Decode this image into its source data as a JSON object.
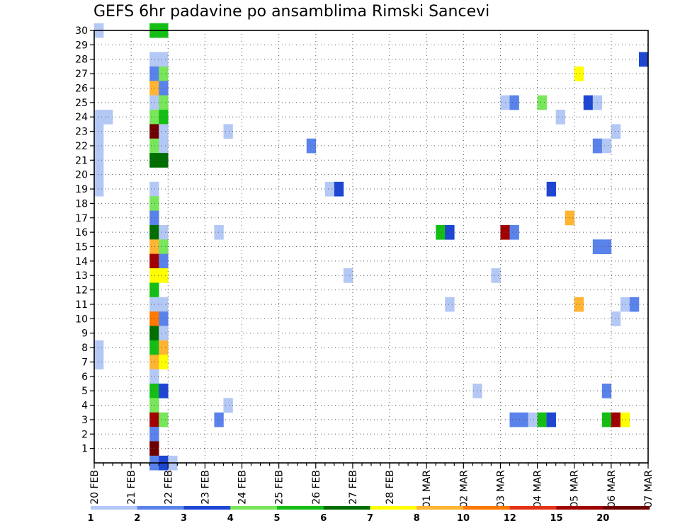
{
  "chart_data": {
    "type": "heatmap",
    "title": "GEFS 6hr padavine po ansamblima Rimski Sancevi",
    "xlabel": "",
    "ylabel": "",
    "x_tick_labels": [
      "20 FEB",
      "21 FEB",
      "22 FEB",
      "23 FEB",
      "24 FEB",
      "25 FEB",
      "26 FEB",
      "27 FEB",
      "28 FEB",
      "01 MAR",
      "02 MAR",
      "03 MAR",
      "04 MAR",
      "05 MAR",
      "06 MAR",
      "07 MAR"
    ],
    "x_range_days": [
      0,
      15
    ],
    "steps_per_day": 4,
    "y_tick_labels": [
      "1",
      "2",
      "3",
      "4",
      "5",
      "6",
      "7",
      "8",
      "9",
      "10",
      "11",
      "12",
      "13",
      "14",
      "15",
      "16",
      "17",
      "18",
      "19",
      "20",
      "21",
      "22",
      "23",
      "24",
      "25",
      "26",
      "27",
      "28",
      "29",
      "30"
    ],
    "y_range": [
      0,
      30
    ],
    "grid": true,
    "legend": {
      "placement": "bottom",
      "labels": [
        "1",
        "2",
        "3",
        "4",
        "5",
        "6",
        "7",
        "8",
        "10",
        "12",
        "15",
        "20"
      ],
      "colors": [
        "#b4c8f5",
        "#5a82eb",
        "#1e46d2",
        "#78e65a",
        "#14be14",
        "#006e00",
        "#ffff00",
        "#ffb432",
        "#ff7800",
        "#e13214",
        "#a00000",
        "#6e0000"
      ]
    },
    "cells": [
      {
        "step": 0,
        "member": 30,
        "value": 1
      },
      {
        "step": 0,
        "member": 24,
        "value": 1
      },
      {
        "step": 1,
        "member": 24,
        "value": 1
      },
      {
        "step": 0,
        "member": 23,
        "value": 1
      },
      {
        "step": 0,
        "member": 22,
        "value": 1
      },
      {
        "step": 0,
        "member": 21,
        "value": 1
      },
      {
        "step": 0,
        "member": 20,
        "value": 1
      },
      {
        "step": 0,
        "member": 19,
        "value": 1
      },
      {
        "step": 0,
        "member": 8,
        "value": 1
      },
      {
        "step": 0,
        "member": 7,
        "value": 1
      },
      {
        "step": 6,
        "member": 30,
        "value": 5
      },
      {
        "step": 7,
        "member": 30,
        "value": 5
      },
      {
        "step": 6,
        "member": 28,
        "value": 1
      },
      {
        "step": 7,
        "member": 28,
        "value": 1
      },
      {
        "step": 6,
        "member": 27,
        "value": 2
      },
      {
        "step": 7,
        "member": 27,
        "value": 4
      },
      {
        "step": 6,
        "member": 26,
        "value": 8
      },
      {
        "step": 7,
        "member": 26,
        "value": 2
      },
      {
        "step": 6,
        "member": 25,
        "value": 1
      },
      {
        "step": 7,
        "member": 25,
        "value": 4
      },
      {
        "step": 6,
        "member": 24,
        "value": 4
      },
      {
        "step": 7,
        "member": 24,
        "value": 5
      },
      {
        "step": 6,
        "member": 23,
        "value": 20
      },
      {
        "step": 7,
        "member": 23,
        "value": 1
      },
      {
        "step": 6,
        "member": 22,
        "value": 4
      },
      {
        "step": 7,
        "member": 22,
        "value": 1
      },
      {
        "step": 6,
        "member": 21,
        "value": 6
      },
      {
        "step": 7,
        "member": 21,
        "value": 6
      },
      {
        "step": 6,
        "member": 19,
        "value": 1
      },
      {
        "step": 6,
        "member": 18,
        "value": 4
      },
      {
        "step": 6,
        "member": 17,
        "value": 2
      },
      {
        "step": 6,
        "member": 16,
        "value": 6
      },
      {
        "step": 7,
        "member": 16,
        "value": 1
      },
      {
        "step": 6,
        "member": 15,
        "value": 8
      },
      {
        "step": 7,
        "member": 15,
        "value": 4
      },
      {
        "step": 6,
        "member": 14,
        "value": 15
      },
      {
        "step": 7,
        "member": 14,
        "value": 2
      },
      {
        "step": 6,
        "member": 13,
        "value": 7
      },
      {
        "step": 7,
        "member": 13,
        "value": 7
      },
      {
        "step": 6,
        "member": 12,
        "value": 5
      },
      {
        "step": 6,
        "member": 11,
        "value": 1
      },
      {
        "step": 7,
        "member": 11,
        "value": 1
      },
      {
        "step": 6,
        "member": 10,
        "value": 10
      },
      {
        "step": 7,
        "member": 10,
        "value": 2
      },
      {
        "step": 6,
        "member": 9,
        "value": 6
      },
      {
        "step": 7,
        "member": 9,
        "value": 1
      },
      {
        "step": 6,
        "member": 8,
        "value": 5
      },
      {
        "step": 7,
        "member": 8,
        "value": 8
      },
      {
        "step": 6,
        "member": 7,
        "value": 8
      },
      {
        "step": 7,
        "member": 7,
        "value": 7
      },
      {
        "step": 6,
        "member": 6,
        "value": 1
      },
      {
        "step": 6,
        "member": 5,
        "value": 5
      },
      {
        "step": 7,
        "member": 5,
        "value": 3
      },
      {
        "step": 6,
        "member": 4,
        "value": 4
      },
      {
        "step": 6,
        "member": 3,
        "value": 15
      },
      {
        "step": 7,
        "member": 3,
        "value": 4
      },
      {
        "step": 6,
        "member": 2,
        "value": 2
      },
      {
        "step": 6,
        "member": 1,
        "value": 20
      },
      {
        "step": 6,
        "member": 0,
        "value": 2
      },
      {
        "step": 7,
        "member": 0,
        "value": 3
      },
      {
        "step": 8,
        "member": 0,
        "value": 1
      },
      {
        "step": 13,
        "member": 16,
        "value": 1
      },
      {
        "step": 13,
        "member": 3,
        "value": 2
      },
      {
        "step": 14,
        "member": 23,
        "value": 1
      },
      {
        "step": 14,
        "member": 4,
        "value": 1
      },
      {
        "step": 23,
        "member": 22,
        "value": 2
      },
      {
        "step": 25,
        "member": 19,
        "value": 1
      },
      {
        "step": 26,
        "member": 19,
        "value": 3
      },
      {
        "step": 27,
        "member": 13,
        "value": 1
      },
      {
        "step": 37,
        "member": 16,
        "value": 5
      },
      {
        "step": 38,
        "member": 16,
        "value": 3
      },
      {
        "step": 38,
        "member": 11,
        "value": 1
      },
      {
        "step": 41,
        "member": 5,
        "value": 1
      },
      {
        "step": 43,
        "member": 13,
        "value": 1
      },
      {
        "step": 44,
        "member": 25,
        "value": 1
      },
      {
        "step": 45,
        "member": 25,
        "value": 2
      },
      {
        "step": 44,
        "member": 16,
        "value": 15
      },
      {
        "step": 45,
        "member": 16,
        "value": 2
      },
      {
        "step": 45,
        "member": 3,
        "value": 2
      },
      {
        "step": 46,
        "member": 3,
        "value": 2
      },
      {
        "step": 47,
        "member": 3,
        "value": 1
      },
      {
        "step": 48,
        "member": 25,
        "value": 4
      },
      {
        "step": 48,
        "member": 3,
        "value": 5
      },
      {
        "step": 49,
        "member": 19,
        "value": 3
      },
      {
        "step": 49,
        "member": 3,
        "value": 3
      },
      {
        "step": 50,
        "member": 24,
        "value": 1
      },
      {
        "step": 51,
        "member": 17,
        "value": 8
      },
      {
        "step": 52,
        "member": 27,
        "value": 7
      },
      {
        "step": 52,
        "member": 11,
        "value": 8
      },
      {
        "step": 53,
        "member": 25,
        "value": 3
      },
      {
        "step": 54,
        "member": 25,
        "value": 1
      },
      {
        "step": 54,
        "member": 22,
        "value": 2
      },
      {
        "step": 55,
        "member": 22,
        "value": 1
      },
      {
        "step": 54,
        "member": 15,
        "value": 2
      },
      {
        "step": 55,
        "member": 15,
        "value": 2
      },
      {
        "step": 55,
        "member": 5,
        "value": 2
      },
      {
        "step": 55,
        "member": 3,
        "value": 5
      },
      {
        "step": 56,
        "member": 3,
        "value": 15
      },
      {
        "step": 57,
        "member": 3,
        "value": 7
      },
      {
        "step": 56,
        "member": 23,
        "value": 1
      },
      {
        "step": 56,
        "member": 10,
        "value": 1
      },
      {
        "step": 57,
        "member": 11,
        "value": 1
      },
      {
        "step": 58,
        "member": 11,
        "value": 2
      },
      {
        "step": 59,
        "member": 28,
        "value": 3
      }
    ]
  }
}
